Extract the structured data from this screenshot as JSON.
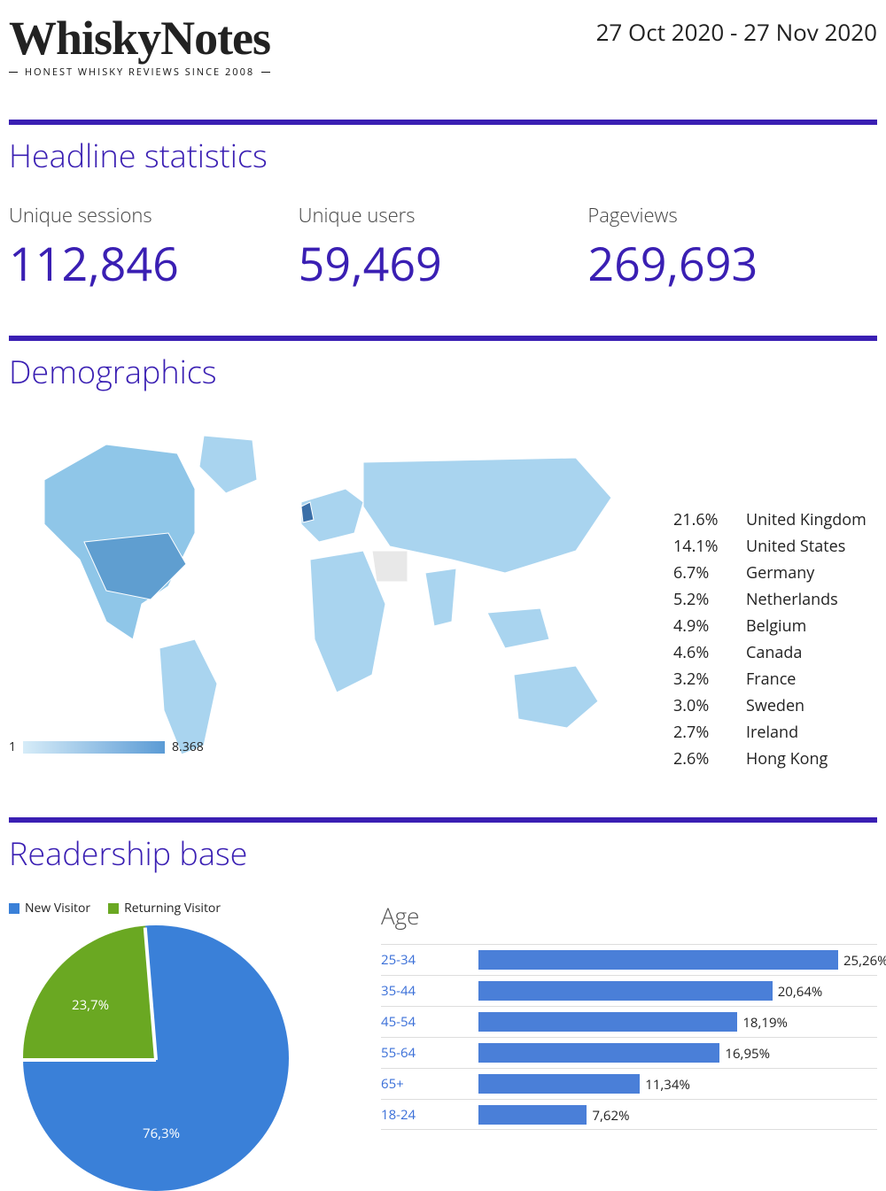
{
  "header": {
    "logo_title": "WhiskyNotes",
    "logo_tagline": "HONEST WHISKY REVIEWS SINCE 2008",
    "date_range": "27 Oct 2020 - 27 Nov 2020"
  },
  "colors": {
    "accent": "#3a1fb3",
    "bar": "#4a7fd8",
    "pie_new": "#3a80d8",
    "pie_return": "#6aa822",
    "map_light": "#d6ecf8",
    "map_dark": "#5b9bd5"
  },
  "sections": {
    "headline": "Headline statistics",
    "demo": "Demographics",
    "readership": "Readership base"
  },
  "stats": {
    "sessions": {
      "label": "Unique sessions",
      "value": "112,846"
    },
    "users": {
      "label": "Unique users",
      "value": "59,469"
    },
    "pageviews": {
      "label": "Pageviews",
      "value": "269,693"
    }
  },
  "map": {
    "legend_min": "1",
    "legend_max": "8.368",
    "countries": [
      {
        "pct": "21.6%",
        "name": "United Kingdom"
      },
      {
        "pct": "14.1%",
        "name": "United States"
      },
      {
        "pct": "6.7%",
        "name": "Germany"
      },
      {
        "pct": "5.2%",
        "name": "Netherlands"
      },
      {
        "pct": "4.9%",
        "name": "Belgium"
      },
      {
        "pct": "4.6%",
        "name": "Canada"
      },
      {
        "pct": "3.2%",
        "name": "France"
      },
      {
        "pct": "3.0%",
        "name": "Sweden"
      },
      {
        "pct": "2.7%",
        "name": "Ireland"
      },
      {
        "pct": "2.6%",
        "name": "Hong Kong"
      }
    ]
  },
  "readership": {
    "legend": {
      "new": "New Visitor",
      "return": "Returning Visitor"
    },
    "pie": {
      "new_pct": 76.3,
      "return_pct": 23.7,
      "new_label": "76,3%",
      "return_label": "23,7%"
    },
    "age": {
      "title": "Age",
      "max_scale": 28,
      "rows": [
        {
          "label": "25-34",
          "value": 25.26,
          "text": "25,26%"
        },
        {
          "label": "35-44",
          "value": 20.64,
          "text": "20,64%"
        },
        {
          "label": "45-54",
          "value": 18.19,
          "text": "18,19%"
        },
        {
          "label": "55-64",
          "value": 16.95,
          "text": "16,95%"
        },
        {
          "label": "65+",
          "value": 11.34,
          "text": "11,34%"
        },
        {
          "label": "18-24",
          "value": 7.62,
          "text": "7,62%"
        }
      ]
    }
  }
}
